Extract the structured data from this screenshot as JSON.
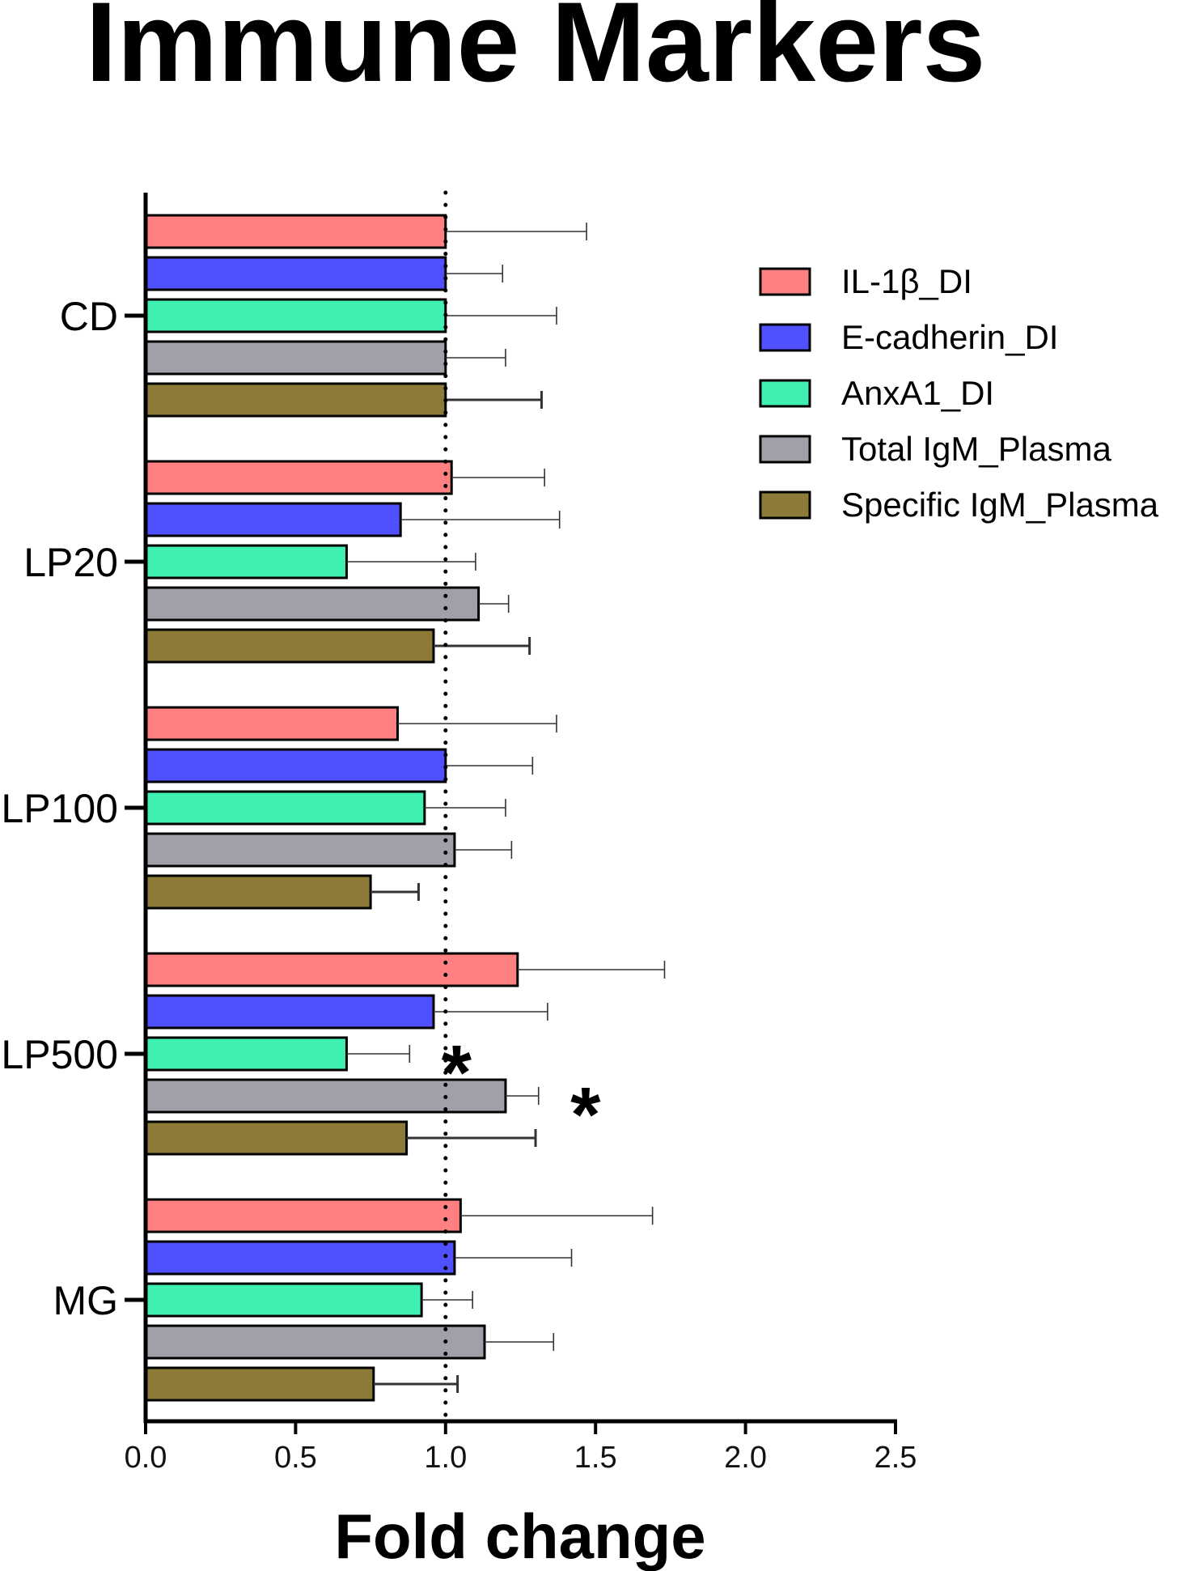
{
  "chart_data": {
    "type": "bar",
    "orientation": "horizontal",
    "title": "Immune Markers",
    "xlabel": "Fold change",
    "ylabel": "",
    "xlim": [
      0,
      2.5
    ],
    "xticks": [
      "0.0",
      "0.5",
      "1.0",
      "1.5",
      "2.0",
      "2.5"
    ],
    "reference_line": 1.0,
    "categories": [
      "CD",
      "LP20",
      "LP100",
      "LP500",
      "MG"
    ],
    "series": [
      {
        "name": "IL-1β_DI",
        "color": "#FF8080",
        "values": [
          1.0,
          1.02,
          0.84,
          1.24,
          1.05
        ],
        "errors": [
          0.47,
          0.31,
          0.53,
          0.49,
          0.64
        ]
      },
      {
        "name": "E-cadherin_DI",
        "color": "#5050FF",
        "values": [
          1.0,
          0.85,
          1.0,
          0.96,
          1.03
        ],
        "errors": [
          0.19,
          0.53,
          0.29,
          0.38,
          0.39
        ]
      },
      {
        "name": "AnxA1_DI",
        "color": "#40F0B0",
        "values": [
          1.0,
          0.67,
          0.93,
          0.67,
          0.92
        ],
        "errors": [
          0.37,
          0.43,
          0.27,
          0.21,
          0.17
        ]
      },
      {
        "name": "Total IgM_Plasma",
        "color": "#A0A0A8",
        "values": [
          1.0,
          1.11,
          1.03,
          1.2,
          1.13
        ],
        "errors": [
          0.2,
          0.1,
          0.19,
          0.11,
          0.23
        ]
      },
      {
        "name": "Specific IgM_Plasma",
        "color": "#8B7A38",
        "values": [
          1.0,
          0.96,
          0.75,
          0.87,
          0.76
        ],
        "errors": [
          0.32,
          0.32,
          0.16,
          0.43,
          0.28
        ]
      }
    ],
    "annotations": [
      {
        "text": "*",
        "category": "LP500",
        "series": "AnxA1_DI"
      },
      {
        "text": "*",
        "category": "LP500",
        "series": "Total IgM_Plasma"
      }
    ],
    "legend": "top-right",
    "grid": false
  }
}
